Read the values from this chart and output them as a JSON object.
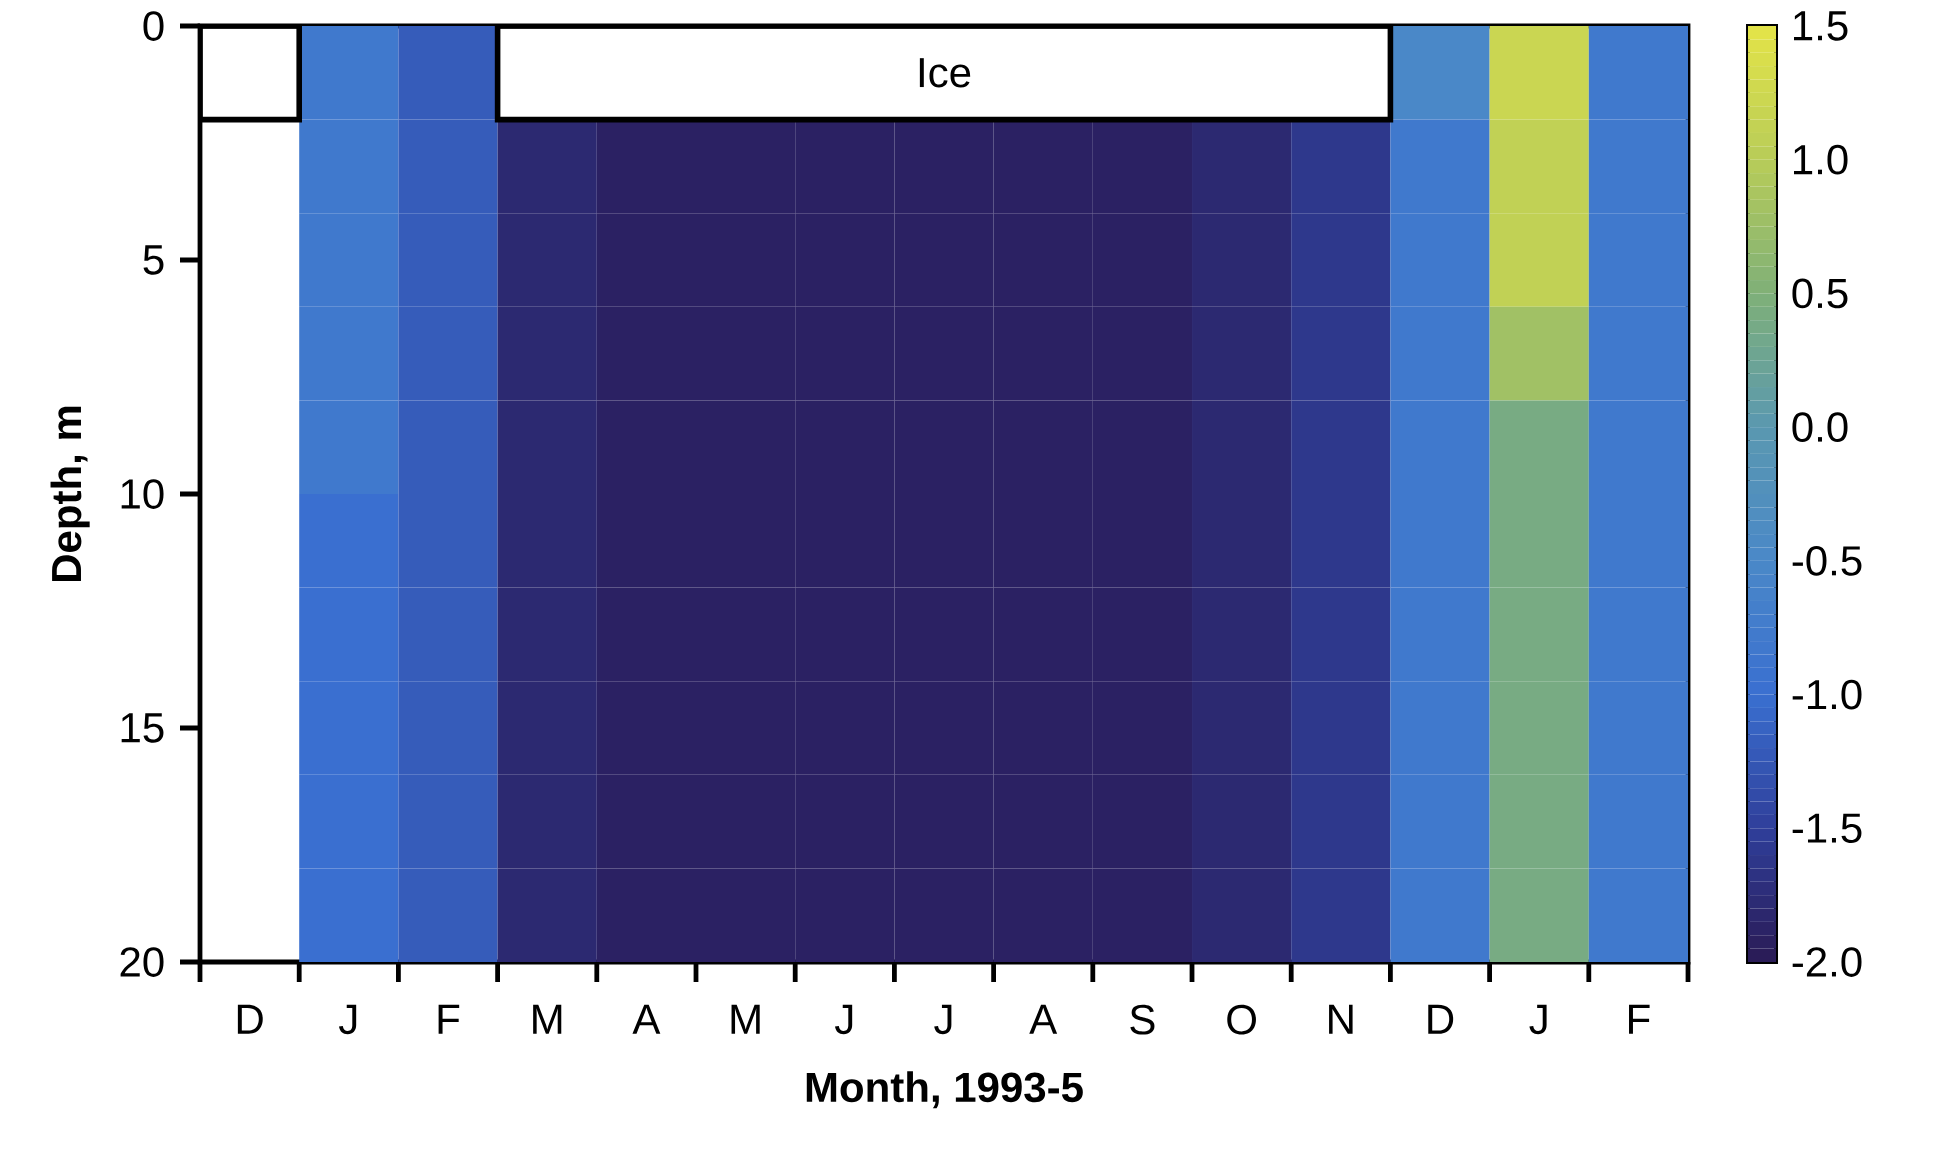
{
  "chart_data": {
    "type": "heatmap",
    "xlabel": "Month,  1993-5",
    "ylabel": "Depth, m",
    "categories": [
      "D",
      "J",
      "F",
      "M",
      "A",
      "M",
      "J",
      "J",
      "A",
      "S",
      "O",
      "N",
      "D",
      "J",
      "F"
    ],
    "ylim": [
      20,
      0
    ],
    "yticks": [
      0,
      5,
      10,
      15,
      20
    ],
    "cells": [
      [
        null,
        -0.8,
        -1.2,
        null,
        null,
        null,
        null,
        null,
        null,
        null,
        null,
        null,
        -0.5,
        1.2,
        -0.8
      ],
      [
        null,
        -0.8,
        -1.2,
        -1.8,
        -1.9,
        -1.9,
        -1.9,
        -1.9,
        -1.9,
        -1.9,
        -1.8,
        -1.6,
        -0.8,
        1.1,
        -0.8
      ],
      [
        null,
        -0.8,
        -1.2,
        -1.8,
        -1.9,
        -1.9,
        -1.9,
        -1.9,
        -1.9,
        -1.9,
        -1.8,
        -1.6,
        -0.8,
        1.1,
        -0.8
      ],
      [
        null,
        -0.8,
        -1.2,
        -1.8,
        -1.9,
        -1.9,
        -1.9,
        -1.9,
        -1.9,
        -1.9,
        -1.8,
        -1.6,
        -0.8,
        0.8,
        -0.8
      ],
      [
        null,
        -0.8,
        -1.2,
        -1.8,
        -1.9,
        -1.9,
        -1.9,
        -1.9,
        -1.9,
        -1.9,
        -1.8,
        -1.6,
        -0.8,
        0.4,
        -0.8
      ],
      [
        null,
        -1.0,
        -1.2,
        -1.8,
        -1.9,
        -1.9,
        -1.9,
        -1.9,
        -1.9,
        -1.9,
        -1.8,
        -1.6,
        -0.8,
        0.4,
        -0.8
      ],
      [
        null,
        -1.0,
        -1.2,
        -1.8,
        -1.9,
        -1.9,
        -1.9,
        -1.9,
        -1.9,
        -1.9,
        -1.8,
        -1.6,
        -0.8,
        0.4,
        -0.8
      ],
      [
        null,
        -1.0,
        -1.2,
        -1.8,
        -1.9,
        -1.9,
        -1.9,
        -1.9,
        -1.9,
        -1.9,
        -1.8,
        -1.6,
        -0.8,
        0.4,
        -0.8
      ],
      [
        null,
        -1.0,
        -1.2,
        -1.8,
        -1.9,
        -1.9,
        -1.9,
        -1.9,
        -1.9,
        -1.9,
        -1.8,
        -1.6,
        -0.8,
        0.4,
        -0.8
      ],
      [
        null,
        -1.0,
        -1.2,
        -1.8,
        -1.9,
        -1.9,
        -1.9,
        -1.9,
        -1.9,
        -1.9,
        -1.8,
        -1.6,
        -0.8,
        0.4,
        -0.8
      ]
    ],
    "clim": [
      -2.0,
      1.5
    ],
    "cticks": [
      {
        "value": -2.0,
        "label": "-2.0"
      },
      -1.5,
      {
        "value": -1.0,
        "label": "-1.0"
      },
      -0.5,
      {
        "value": 0.0,
        "label": "0.0"
      },
      0.5,
      {
        "value": 1.0,
        "label": "1.0"
      },
      1.5
    ],
    "annotations": [
      "Ice"
    ]
  }
}
